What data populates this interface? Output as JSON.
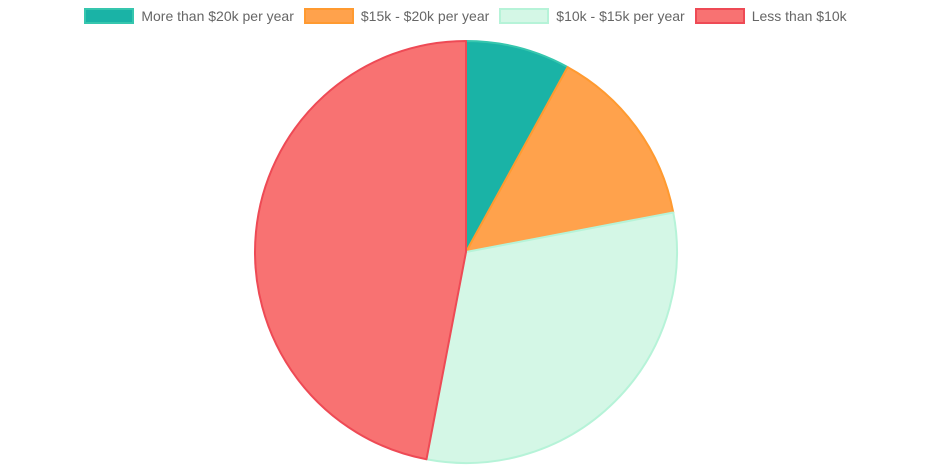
{
  "chart_data": {
    "type": "pie",
    "categories": [
      "More than $20k per year",
      "$15k - $20k per year",
      "$10k - $15k per year",
      "Less than $10k"
    ],
    "values": [
      8,
      14,
      31,
      47
    ],
    "colors": [
      {
        "fill": "#1ab3a6",
        "border": "#36c6ae"
      },
      {
        "fill": "#ffa24c",
        "border": "#ff9a30"
      },
      {
        "fill": "#d4f7e6",
        "border": "#b6f3d8"
      },
      {
        "fill": "#f87272",
        "border": "#ee4a55"
      }
    ],
    "legend_position": "top",
    "start_angle_deg": 0,
    "direction": "clockwise"
  }
}
